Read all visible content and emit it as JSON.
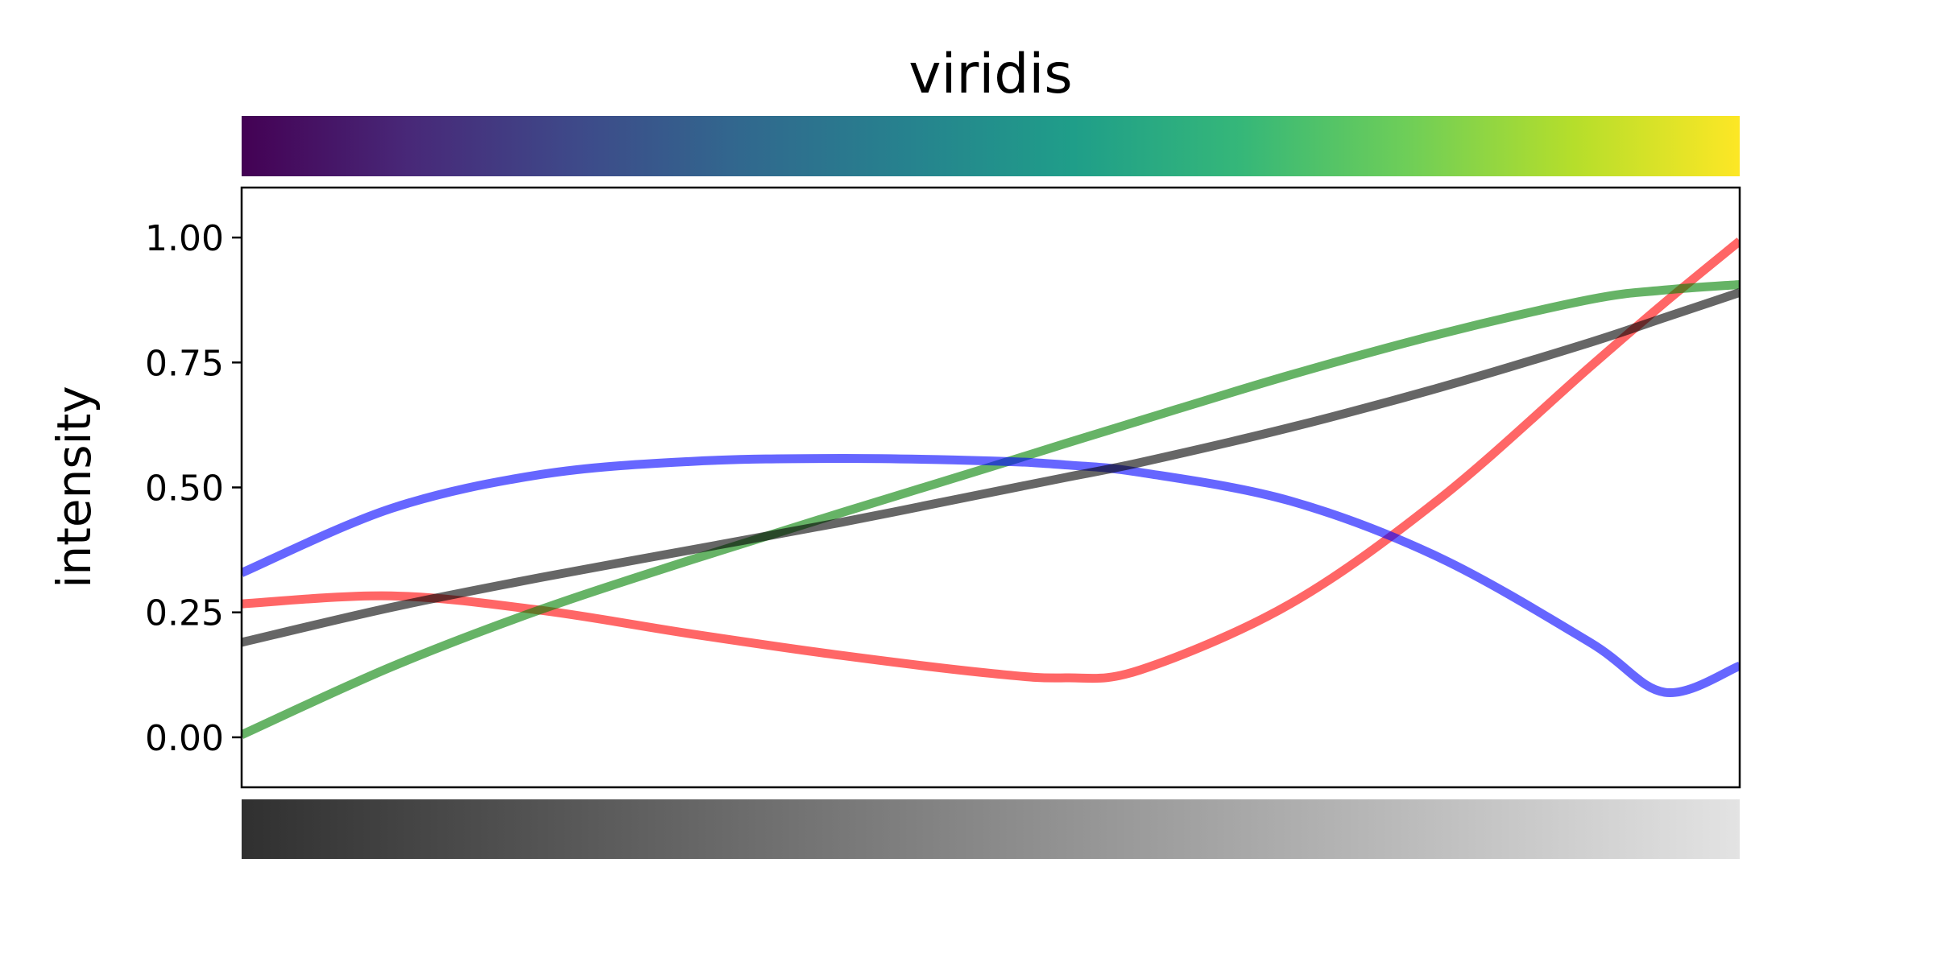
{
  "chart_data": {
    "type": "line",
    "title": "viridis",
    "xlabel": "",
    "ylabel": "intensity",
    "xlim": [
      0,
      1
    ],
    "ylim": [
      -0.1,
      1.1
    ],
    "yticks": [
      "0.00",
      "0.25",
      "0.50",
      "0.75",
      "1.00"
    ],
    "ytick_values": [
      0,
      0.25,
      0.5,
      0.75,
      1.0
    ],
    "grid": false,
    "line_alpha": 0.6,
    "x": [
      0,
      0.1,
      0.2,
      0.3,
      0.4,
      0.5,
      0.55,
      0.6,
      0.7,
      0.8,
      0.9,
      0.95,
      1.0
    ],
    "series": [
      {
        "color": "#ff0000",
        "values": [
          0.267,
          0.283,
          0.254,
          0.207,
          0.164,
          0.128,
          0.119,
          0.135,
          0.267,
          0.478,
          0.741,
          0.87,
          0.993
        ]
      },
      {
        "color": "#008000",
        "values": [
          0.005,
          0.141,
          0.256,
          0.355,
          0.449,
          0.541,
          0.588,
          0.634,
          0.725,
          0.807,
          0.876,
          0.895,
          0.906
        ]
      },
      {
        "color": "#0000ff",
        "values": [
          0.329,
          0.458,
          0.526,
          0.552,
          0.558,
          0.553,
          0.545,
          0.53,
          0.473,
          0.359,
          0.19,
          0.09,
          0.143
        ]
      },
      {
        "color": "#000000",
        "values": [
          0.19,
          0.26,
          0.32,
          0.375,
          0.43,
          0.49,
          0.52,
          0.55,
          0.62,
          0.7,
          0.79,
          0.84,
          0.89
        ]
      }
    ],
    "colorbars": [
      {
        "position": "top",
        "colormap": "viridis",
        "colors": [
          "#440154",
          "#482878",
          "#3e4989",
          "#31688e",
          "#26828e",
          "#1f9e89",
          "#35b779",
          "#6ece58",
          "#b5de2b",
          "#fde725"
        ]
      },
      {
        "position": "bottom",
        "colormap": "grayscale lightness",
        "colors": [
          "#303030",
          "#e3e3e3"
        ]
      }
    ]
  }
}
